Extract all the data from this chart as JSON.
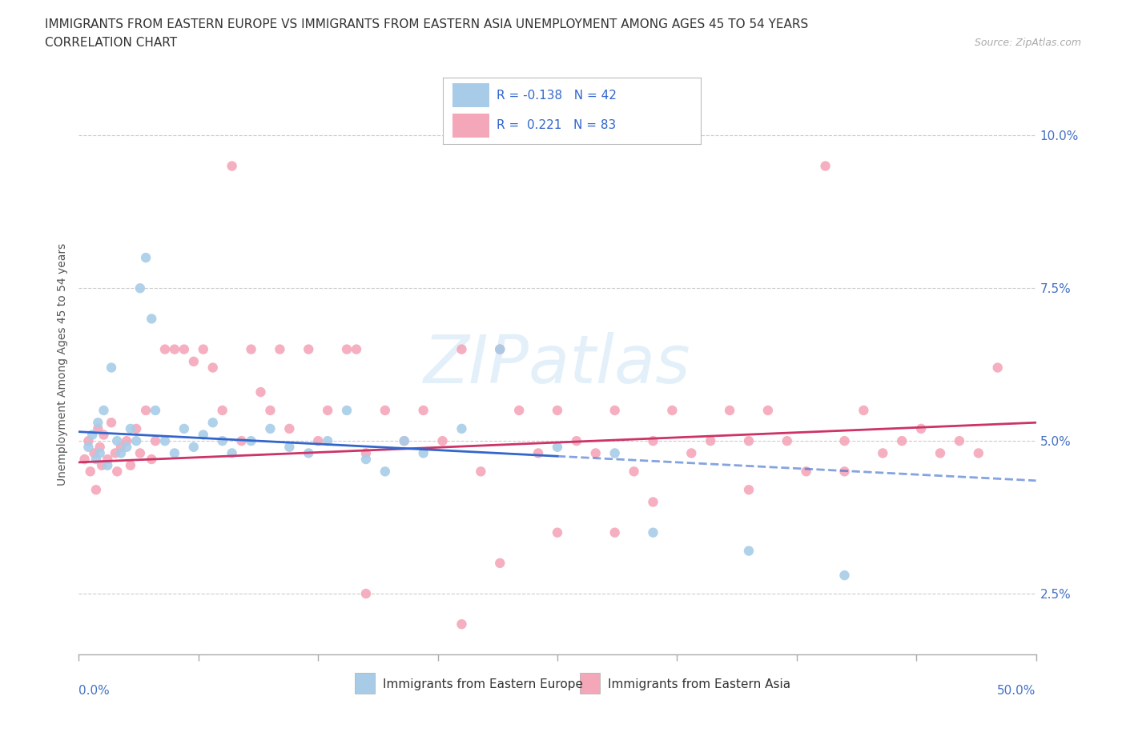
{
  "title_line1": "IMMIGRANTS FROM EASTERN EUROPE VS IMMIGRANTS FROM EASTERN ASIA UNEMPLOYMENT AMONG AGES 45 TO 54 YEARS",
  "title_line2": "CORRELATION CHART",
  "source": "Source: ZipAtlas.com",
  "ylabel": "Unemployment Among Ages 45 to 54 years",
  "watermark": "ZIPatlas",
  "blue_color": "#a8cce8",
  "pink_color": "#f4a7b9",
  "blue_line_color": "#3366cc",
  "pink_line_color": "#cc3366",
  "legend_text_color": "#3366cc",
  "blue_scatter": [
    [
      0.5,
      4.9
    ],
    [
      0.7,
      5.1
    ],
    [
      0.9,
      4.7
    ],
    [
      1.0,
      5.3
    ],
    [
      1.1,
      4.8
    ],
    [
      1.3,
      5.5
    ],
    [
      1.5,
      4.6
    ],
    [
      1.7,
      6.2
    ],
    [
      2.0,
      5.0
    ],
    [
      2.2,
      4.8
    ],
    [
      2.5,
      4.9
    ],
    [
      2.7,
      5.2
    ],
    [
      3.0,
      5.0
    ],
    [
      3.2,
      7.5
    ],
    [
      3.5,
      8.0
    ],
    [
      3.8,
      7.0
    ],
    [
      4.0,
      5.5
    ],
    [
      4.5,
      5.0
    ],
    [
      5.0,
      4.8
    ],
    [
      5.5,
      5.2
    ],
    [
      6.0,
      4.9
    ],
    [
      6.5,
      5.1
    ],
    [
      7.0,
      5.3
    ],
    [
      7.5,
      5.0
    ],
    [
      8.0,
      4.8
    ],
    [
      9.0,
      5.0
    ],
    [
      10.0,
      5.2
    ],
    [
      11.0,
      4.9
    ],
    [
      12.0,
      4.8
    ],
    [
      13.0,
      5.0
    ],
    [
      14.0,
      5.5
    ],
    [
      15.0,
      4.7
    ],
    [
      16.0,
      4.5
    ],
    [
      17.0,
      5.0
    ],
    [
      18.0,
      4.8
    ],
    [
      20.0,
      5.2
    ],
    [
      22.0,
      6.5
    ],
    [
      25.0,
      4.9
    ],
    [
      28.0,
      4.8
    ],
    [
      30.0,
      3.5
    ],
    [
      35.0,
      3.2
    ],
    [
      40.0,
      2.8
    ]
  ],
  "pink_scatter": [
    [
      0.3,
      4.7
    ],
    [
      0.5,
      5.0
    ],
    [
      0.6,
      4.5
    ],
    [
      0.8,
      4.8
    ],
    [
      0.9,
      4.2
    ],
    [
      1.0,
      5.2
    ],
    [
      1.1,
      4.9
    ],
    [
      1.2,
      4.6
    ],
    [
      1.3,
      5.1
    ],
    [
      1.5,
      4.7
    ],
    [
      1.7,
      5.3
    ],
    [
      1.9,
      4.8
    ],
    [
      2.0,
      4.5
    ],
    [
      2.2,
      4.9
    ],
    [
      2.5,
      5.0
    ],
    [
      2.7,
      4.6
    ],
    [
      3.0,
      5.2
    ],
    [
      3.2,
      4.8
    ],
    [
      3.5,
      5.5
    ],
    [
      3.8,
      4.7
    ],
    [
      4.0,
      5.0
    ],
    [
      4.5,
      6.5
    ],
    [
      5.0,
      6.5
    ],
    [
      5.5,
      6.5
    ],
    [
      6.0,
      6.3
    ],
    [
      6.5,
      6.5
    ],
    [
      7.0,
      6.2
    ],
    [
      7.5,
      5.5
    ],
    [
      8.0,
      9.5
    ],
    [
      8.5,
      5.0
    ],
    [
      9.0,
      6.5
    ],
    [
      9.5,
      5.8
    ],
    [
      10.0,
      5.5
    ],
    [
      10.5,
      6.5
    ],
    [
      11.0,
      5.2
    ],
    [
      12.0,
      6.5
    ],
    [
      12.5,
      5.0
    ],
    [
      13.0,
      5.5
    ],
    [
      14.0,
      6.5
    ],
    [
      14.5,
      6.5
    ],
    [
      15.0,
      4.8
    ],
    [
      16.0,
      5.5
    ],
    [
      17.0,
      5.0
    ],
    [
      18.0,
      5.5
    ],
    [
      19.0,
      5.0
    ],
    [
      20.0,
      6.5
    ],
    [
      21.0,
      4.5
    ],
    [
      22.0,
      6.5
    ],
    [
      23.0,
      5.5
    ],
    [
      24.0,
      4.8
    ],
    [
      25.0,
      5.5
    ],
    [
      26.0,
      5.0
    ],
    [
      27.0,
      4.8
    ],
    [
      28.0,
      5.5
    ],
    [
      29.0,
      4.5
    ],
    [
      30.0,
      5.0
    ],
    [
      31.0,
      5.5
    ],
    [
      32.0,
      4.8
    ],
    [
      33.0,
      5.0
    ],
    [
      34.0,
      5.5
    ],
    [
      35.0,
      5.0
    ],
    [
      36.0,
      5.5
    ],
    [
      37.0,
      5.0
    ],
    [
      38.0,
      4.5
    ],
    [
      39.0,
      9.5
    ],
    [
      40.0,
      5.0
    ],
    [
      41.0,
      5.5
    ],
    [
      42.0,
      4.8
    ],
    [
      43.0,
      5.0
    ],
    [
      44.0,
      5.2
    ],
    [
      45.0,
      4.8
    ],
    [
      46.0,
      5.0
    ],
    [
      47.0,
      4.8
    ],
    [
      48.0,
      6.2
    ],
    [
      15.0,
      2.5
    ],
    [
      20.0,
      2.0
    ],
    [
      22.0,
      3.0
    ],
    [
      25.0,
      3.5
    ],
    [
      28.0,
      3.5
    ],
    [
      30.0,
      4.0
    ],
    [
      35.0,
      4.2
    ],
    [
      40.0,
      4.5
    ]
  ],
  "blue_trendline_solid": {
    "x_start": 0.0,
    "y_start": 5.15,
    "x_end": 25.0,
    "y_end": 4.75
  },
  "blue_trendline_dash": {
    "x_start": 25.0,
    "y_start": 4.75,
    "x_end": 50.0,
    "y_end": 4.35
  },
  "pink_trendline": {
    "x_start": 0.0,
    "y_start": 4.65,
    "x_end": 50.0,
    "y_end": 5.3
  },
  "xlim": [
    0.0,
    50.0
  ],
  "ylim": [
    1.5,
    11.0
  ],
  "ytick_vals": [
    2.5,
    5.0,
    7.5,
    10.0
  ],
  "xtick_vals": [
    0.0,
    6.25,
    12.5,
    18.75,
    25.0,
    31.25,
    37.5,
    43.75,
    50.0
  ],
  "background_color": "#ffffff",
  "grid_color": "#cccccc",
  "tick_color": "#aaaaaa"
}
